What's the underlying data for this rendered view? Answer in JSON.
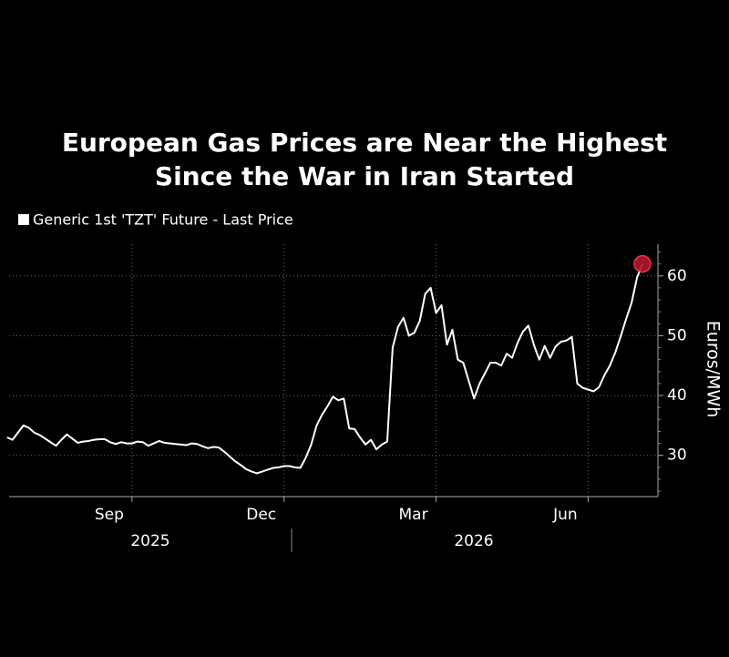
{
  "chart_data": {
    "type": "line",
    "title": [
      "European Gas Prices are Near the Highest",
      "Since the War in Iran Started"
    ],
    "y_label": "Euros/MWh",
    "x_groups": [
      "2025",
      "2026"
    ],
    "categories": [
      null,
      null,
      null,
      null,
      null,
      null,
      null,
      null,
      null,
      null,
      null,
      null,
      null,
      null,
      null,
      null,
      null,
      null,
      null,
      null,
      null,
      null,
      null,
      "Sep",
      null,
      null,
      null,
      null,
      null,
      null,
      null,
      null,
      null,
      null,
      null,
      null,
      null,
      null,
      null,
      null,
      null,
      null,
      null,
      null,
      null,
      null,
      null,
      null,
      null,
      null,
      null,
      "Dec",
      null,
      null,
      null,
      null,
      null,
      null,
      null,
      null,
      null,
      null,
      null,
      null,
      null,
      null,
      null,
      null,
      null,
      null,
      null,
      null,
      null,
      null,
      null,
      null,
      null,
      null,
      null,
      "Mar",
      null,
      null,
      null,
      null,
      null,
      null,
      null,
      null,
      null,
      null,
      null,
      null,
      null,
      null,
      null,
      null,
      null,
      null,
      null,
      null,
      null,
      null,
      null,
      null,
      null,
      null,
      null,
      "Jun",
      null,
      null,
      null,
      null,
      null,
      null,
      null,
      null,
      null,
      null
    ],
    "series": [
      {
        "name": "Generic 1st 'TZT' Future - Last Price",
        "color": "#ffffff",
        "values": [
          33,
          32.6,
          33.8,
          35,
          34.6,
          33.8,
          33.4,
          32.8,
          32.2,
          31.6,
          32.6,
          33.5,
          32.8,
          32.1,
          32.3,
          32.4,
          32.6,
          32.7,
          32.7,
          32.2,
          31.9,
          32.2,
          32,
          32,
          32.3,
          32.2,
          31.6,
          32,
          32.4,
          32.1,
          32,
          31.9,
          31.8,
          31.7,
          32,
          31.9,
          31.5,
          31.2,
          31.4,
          31.3,
          30.6,
          29.8,
          29,
          28.4,
          27.7,
          27.3,
          27,
          27.3,
          27.6,
          27.9,
          28,
          28.2,
          28.2,
          28,
          27.9,
          29.6,
          31.8,
          35,
          36.8,
          38.2,
          39.8,
          39.2,
          39.5,
          34.5,
          34.4,
          33,
          31.8,
          32.6,
          31,
          31.8,
          32.3,
          48,
          51.5,
          53,
          50,
          50.5,
          52.5,
          57,
          58,
          53.8,
          55.1,
          48.5,
          51,
          46,
          45.5,
          42.5,
          39.5,
          42,
          43.7,
          45.5,
          45.5,
          45,
          47,
          46.3,
          48.8,
          50.7,
          51.7,
          48.5,
          46,
          48.3,
          46.3,
          48.2,
          49,
          49.2,
          49.8,
          42,
          41.3,
          41,
          40.7,
          41.4,
          43.4,
          45,
          47.2,
          49.9,
          52.8,
          55.5,
          59.7,
          62
        ]
      }
    ],
    "last_point_marker_color": "#b0182e",
    "ylim": [
      23.1,
      65.3
    ],
    "yticks": [
      30,
      40,
      50,
      60
    ],
    "grid": true
  }
}
